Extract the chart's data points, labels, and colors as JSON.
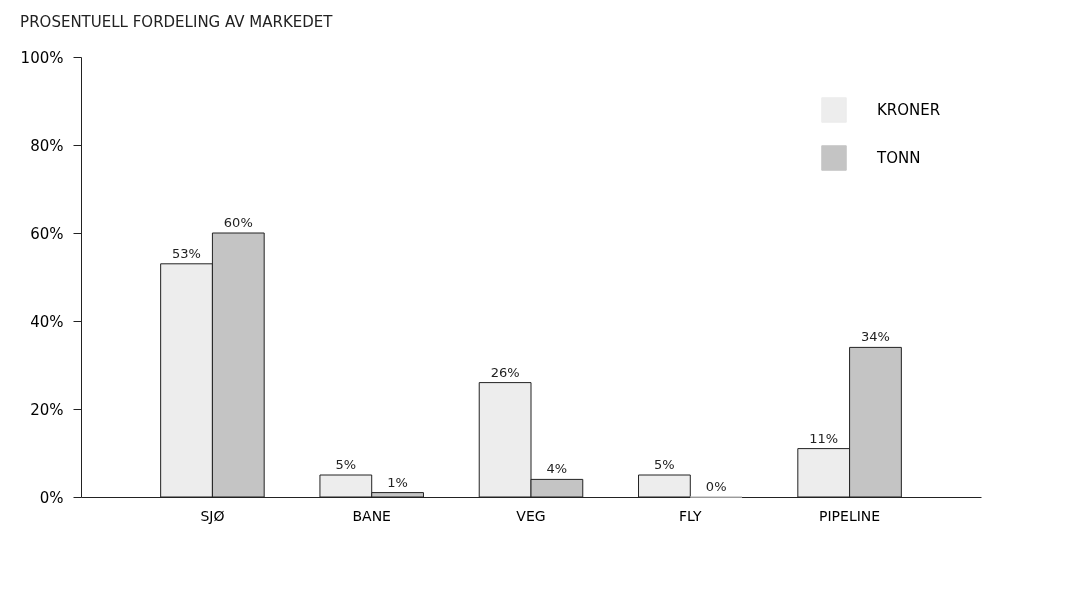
{
  "chart_data": {
    "type": "bar",
    "title": "PROSENTUELL FORDELING AV MARKEDET",
    "categories": [
      "SJØ",
      "BANE",
      "VEG",
      "FLY",
      "PIPELINE"
    ],
    "series": [
      {
        "name": "KRONER",
        "color": "#ededed",
        "values": [
          53,
          5,
          26,
          5,
          11
        ],
        "value_labels": [
          "53%",
          "5%",
          "26%",
          "5%",
          "11%"
        ]
      },
      {
        "name": "TONN",
        "color": "#c4c4c4",
        "values": [
          60,
          1,
          4,
          0,
          34
        ],
        "value_labels": [
          "60%",
          "1%",
          "4%",
          "0%",
          "34%"
        ]
      }
    ],
    "ylim": [
      0,
      100
    ],
    "yticks": [
      {
        "value": 0,
        "label": "0%"
      },
      {
        "value": 20,
        "label": "20%"
      },
      {
        "value": 40,
        "label": "40%"
      },
      {
        "value": 60,
        "label": "60%"
      },
      {
        "value": 80,
        "label": "80%"
      },
      {
        "value": 100,
        "label": "100%"
      }
    ],
    "legend": "top right"
  }
}
